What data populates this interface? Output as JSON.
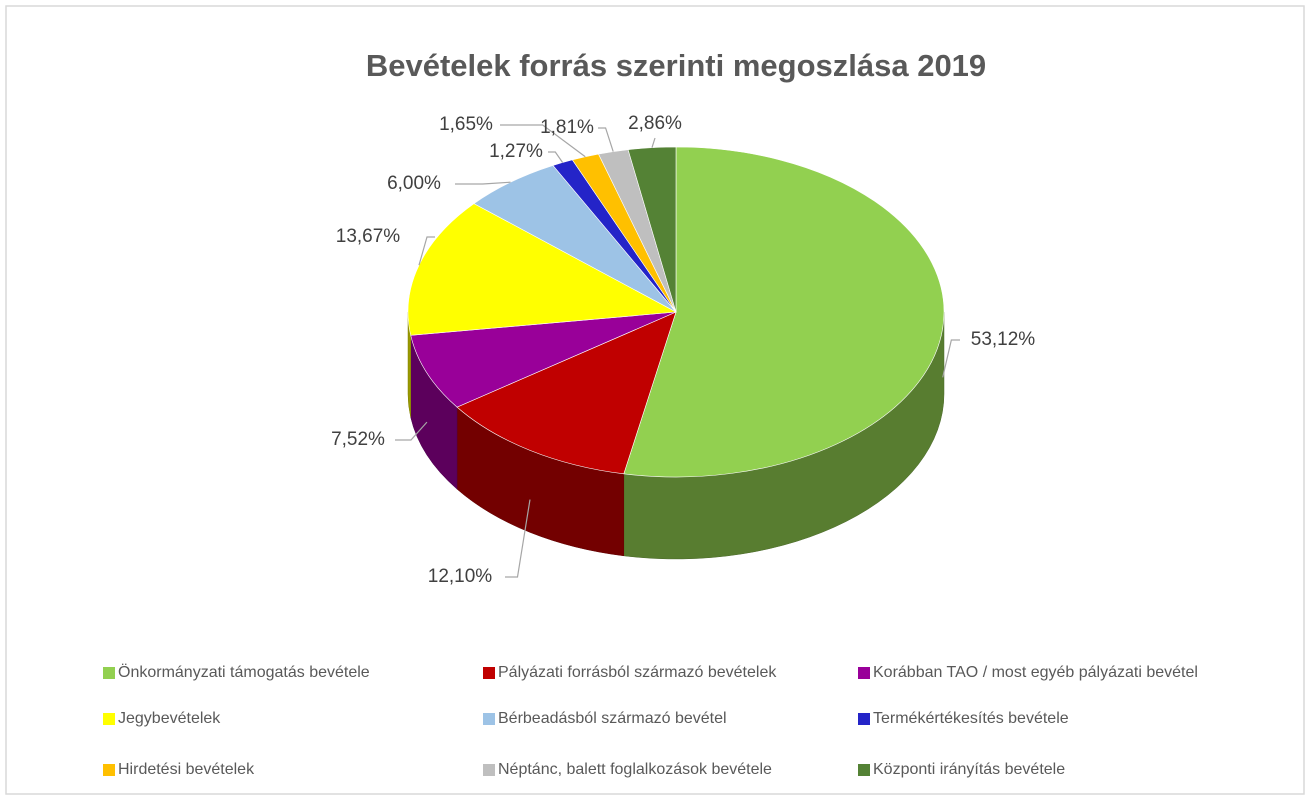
{
  "chart_data": {
    "type": "pie3d",
    "title": "Bevételek forrás szerinti megoszlása 2019",
    "categories": [
      "Önkormányzati támogatás bevétele",
      "Pályázati forrásból származó bevételek",
      "Korábban TAO / most egyéb pályázati bevétel",
      "Jegybevételek",
      "Bérbeadásból származó bevétel",
      "Termékértékesítés bevétele",
      "Hirdetési bevételek",
      "Néptánc, balett foglalkozások bevétele",
      "Központi irányítás bevétele"
    ],
    "values": [
      53.12,
      12.1,
      7.52,
      13.67,
      6.0,
      1.27,
      1.65,
      1.81,
      2.86
    ],
    "value_labels": [
      "53,12%",
      "12,10%",
      "7,52%",
      "13,67%",
      "6,00%",
      "1,27%",
      "1,65%",
      "1,81%",
      "2,86%"
    ],
    "colors": [
      "#92d050",
      "#c00000",
      "#990099",
      "#ffff00",
      "#9dc3e6",
      "#2424c8",
      "#ffc000",
      "#bfbfbf",
      "#548235"
    ],
    "legend": "bottom"
  }
}
